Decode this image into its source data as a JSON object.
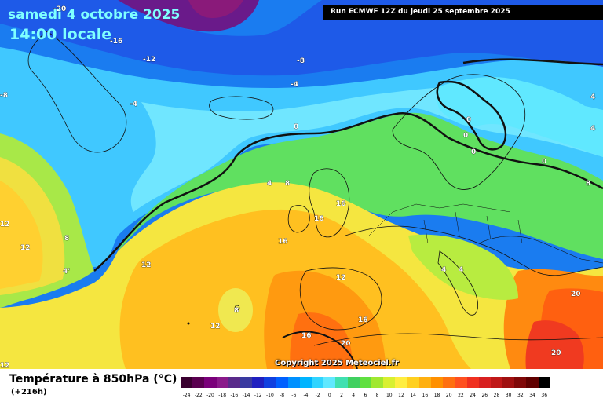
{
  "header": {
    "date": "samedi 4 octobre 2025",
    "time": "14:00 locale",
    "run": "Run ECMWF 12Z du jeudi 25 septembre 2025"
  },
  "map": {
    "isotherm_labels": [
      "-20",
      "-16",
      "-12",
      "-8",
      "-4",
      "-4",
      "0",
      "0",
      "0",
      "0",
      "0",
      "4",
      "4",
      "4",
      "8",
      "8",
      "8",
      "12",
      "12",
      "12",
      "12",
      "12",
      "16",
      "16",
      "16",
      "16",
      "20",
      "20",
      "20",
      "4'",
      "-8",
      "4",
      "4",
      "8",
      "12",
      "16"
    ],
    "copyright": "Copyright 2025 Meteociel.fr"
  },
  "legend": {
    "title": "Température à 850hPa (°C)",
    "subtitle": "(+216h)",
    "scale_values": [
      "-24",
      "-22",
      "-20",
      "-18",
      "-16",
      "-14",
      "-12",
      "-10",
      "-8",
      "-6",
      "-4",
      "-2",
      "0",
      "2",
      "4",
      "6",
      "8",
      "10",
      "12",
      "14",
      "16",
      "18",
      "20",
      "22",
      "24",
      "26",
      "28",
      "30",
      "32",
      "34",
      "36"
    ],
    "scale_colors": [
      "#3a0030",
      "#5a0050",
      "#7a007a",
      "#8a1a8a",
      "#5a2a8a",
      "#3a3aa0",
      "#2020c0",
      "#1040e0",
      "#0060ff",
      "#0090ff",
      "#00b4ff",
      "#30d4ff",
      "#60e8ff",
      "#40e0b0",
      "#40d060",
      "#60e040",
      "#a0e830",
      "#d8f030",
      "#ffee40",
      "#ffd020",
      "#ffb010",
      "#ff9000",
      "#ff7010",
      "#ff5020",
      "#f03020",
      "#d82020",
      "#c01818",
      "#a01010",
      "#800808",
      "#600000",
      "#000000"
    ]
  }
}
